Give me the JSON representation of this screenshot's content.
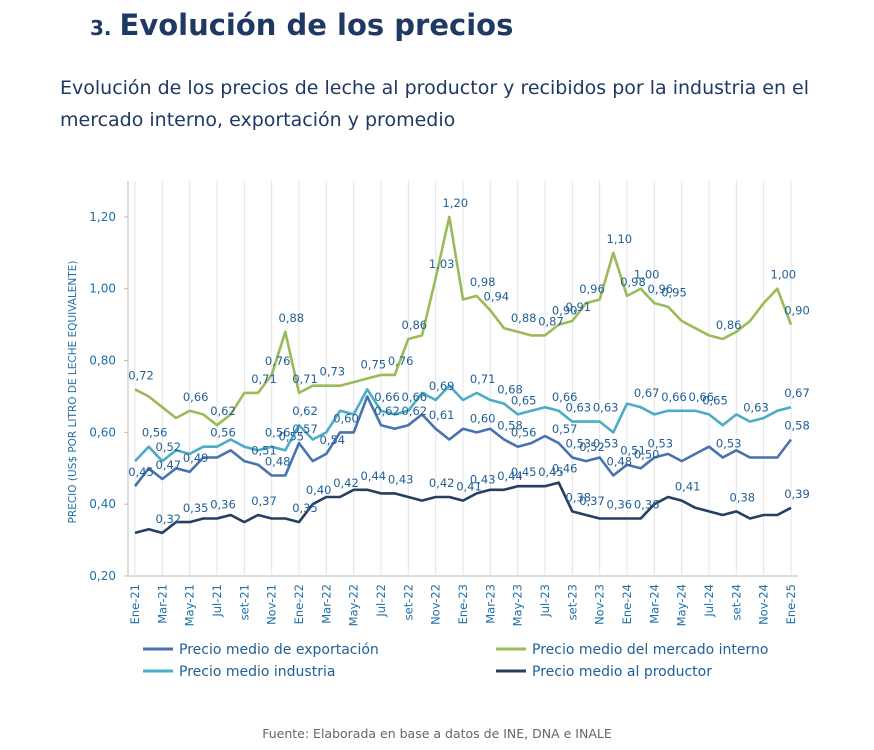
{
  "header": {
    "number": "3.",
    "title": "Evolución de los precios"
  },
  "chart_data": {
    "type": "line",
    "title": "Evolución de los precios de leche al productor y recibidos por la industria en el mercado interno, exportación y promedio",
    "y_label": "PRECIO (US$ POR LITRO DE LECHE EQUIVALENTE)",
    "source": "Fuente: Elaborada en base a datos de INE, DNA e INALE",
    "categories": [
      "Ene-21",
      null,
      "Mar-21",
      null,
      "May-21",
      null,
      "Jul-21",
      null,
      "set-21",
      null,
      "Nov-21",
      null,
      "Ene-22",
      null,
      "Mar-22",
      null,
      "May-22",
      null,
      "Jul-22",
      null,
      "set-22",
      null,
      "Nov-22",
      null,
      "Ene-23",
      null,
      "Mar-23",
      null,
      "May-23",
      null,
      "Jul-23",
      null,
      "set-23",
      null,
      "Nov-23",
      null,
      "Ene-24",
      null,
      "Mar-24",
      null,
      "May-24",
      null,
      "Jul-24",
      null,
      "set-24",
      null,
      "Nov-24",
      null,
      "Ene-25"
    ],
    "ylim": [
      0.2,
      1.3
    ],
    "yticks": [
      {
        "value": 0.2,
        "label": "0,20"
      },
      {
        "value": 0.4,
        "label": "0,40"
      },
      {
        "value": 0.6,
        "label": "0,60"
      },
      {
        "value": 0.8,
        "label": "0,80"
      },
      {
        "value": 1.0,
        "label": "1,00"
      },
      {
        "value": 1.2,
        "label": "1,20"
      }
    ],
    "x_grid": true,
    "series": [
      {
        "name": "Precio medio de exportación",
        "color": "#4a72b0",
        "values": [
          0.45,
          0.5,
          0.47,
          0.5,
          0.49,
          0.53,
          0.53,
          0.55,
          0.52,
          0.51,
          0.48,
          0.48,
          0.57,
          0.52,
          0.54,
          0.6,
          0.6,
          0.7,
          0.62,
          0.61,
          0.62,
          0.65,
          0.61,
          0.58,
          0.61,
          0.6,
          0.61,
          0.58,
          0.56,
          0.57,
          0.59,
          0.57,
          0.53,
          0.52,
          0.53,
          0.48,
          0.51,
          0.5,
          0.53,
          0.54,
          0.52,
          0.54,
          0.56,
          0.53,
          0.55,
          0.53,
          0.53,
          0.53,
          0.58
        ],
        "value_labels": [
          "0,45",
          null,
          "0,47",
          null,
          "0,49",
          null,
          null,
          null,
          null,
          "0,51",
          "0,48",
          null,
          "0,57",
          null,
          "0,54",
          "0,60",
          null,
          null,
          "0,62",
          null,
          "0,62",
          null,
          "0,61",
          null,
          null,
          "0,60",
          null,
          "0,58",
          "0,56",
          null,
          null,
          "0,57",
          "0,53",
          "0,52",
          "0,53",
          "0,48",
          "0,51",
          "0,50",
          "0,53",
          null,
          null,
          null,
          null,
          "0,53",
          null,
          null,
          null,
          null,
          "0,58"
        ]
      },
      {
        "name": "Precio medio del mercado interno",
        "color": "#9bbb59",
        "values": [
          0.72,
          0.7,
          0.67,
          0.64,
          0.66,
          0.65,
          0.62,
          0.65,
          0.71,
          0.71,
          0.76,
          0.88,
          0.71,
          0.73,
          0.73,
          0.73,
          0.74,
          0.75,
          0.76,
          0.76,
          0.86,
          0.87,
          1.03,
          1.2,
          0.97,
          0.98,
          0.94,
          0.89,
          0.88,
          0.87,
          0.87,
          0.9,
          0.91,
          0.96,
          0.97,
          1.1,
          0.98,
          1.0,
          0.96,
          0.95,
          0.91,
          0.89,
          0.87,
          0.86,
          0.88,
          0.91,
          0.96,
          1.0,
          0.9
        ],
        "value_labels": [
          "0,72",
          null,
          null,
          null,
          "0,66",
          null,
          "0,62",
          null,
          null,
          "0,71",
          "0,76",
          "0,88",
          "0,71",
          null,
          "0,73",
          null,
          null,
          "0,75",
          null,
          "0,76",
          "0,86",
          null,
          "1,03",
          "1,20",
          null,
          "0,98",
          "0,94",
          null,
          "0,88",
          null,
          "0,87",
          "0,90",
          "0,91",
          "0,96",
          null,
          "1,10",
          "0,98",
          "1,00",
          "0,96",
          "0,95",
          null,
          null,
          null,
          "0,86",
          null,
          null,
          null,
          "1,00",
          "0,90"
        ]
      },
      {
        "name": "Precio medio industria",
        "color": "#4bacc6",
        "values": [
          0.52,
          0.56,
          0.52,
          0.55,
          0.54,
          0.56,
          0.56,
          0.58,
          0.56,
          0.55,
          0.56,
          0.55,
          0.62,
          0.58,
          0.6,
          0.66,
          0.65,
          0.72,
          0.66,
          0.65,
          0.66,
          0.71,
          0.69,
          0.73,
          0.69,
          0.71,
          0.69,
          0.68,
          0.65,
          0.66,
          0.67,
          0.66,
          0.63,
          0.63,
          0.63,
          0.6,
          0.68,
          0.67,
          0.65,
          0.66,
          0.66,
          0.66,
          0.65,
          0.62,
          0.65,
          0.63,
          0.64,
          0.66,
          0.67
        ],
        "value_labels": [
          null,
          "0,56",
          "0,52",
          null,
          null,
          null,
          "0,56",
          null,
          null,
          null,
          "0,56",
          "0,55",
          "0,62",
          null,
          null,
          null,
          null,
          null,
          "0,66",
          null,
          "0,66",
          null,
          "0,69",
          null,
          null,
          "0,71",
          null,
          "0,68",
          "0,65",
          null,
          null,
          "0,66",
          "0,63",
          null,
          "0,63",
          null,
          null,
          "0,67",
          null,
          "0,66",
          null,
          "0,66",
          "0,65",
          null,
          null,
          "0,63",
          null,
          null,
          "0,67"
        ]
      },
      {
        "name": "Precio medio al productor",
        "color": "#243f60",
        "values": [
          0.32,
          0.33,
          0.32,
          0.35,
          0.35,
          0.36,
          0.36,
          0.37,
          0.35,
          0.37,
          0.36,
          0.36,
          0.35,
          0.4,
          0.42,
          0.42,
          0.44,
          0.44,
          0.43,
          0.43,
          0.42,
          0.41,
          0.42,
          0.42,
          0.41,
          0.43,
          0.44,
          0.44,
          0.45,
          0.45,
          0.45,
          0.46,
          0.38,
          0.37,
          0.36,
          0.36,
          0.36,
          0.36,
          0.4,
          0.42,
          0.41,
          0.39,
          0.38,
          0.37,
          0.38,
          0.36,
          0.37,
          0.37,
          0.39
        ],
        "value_labels": [
          null,
          null,
          "0,32",
          null,
          "0,35",
          null,
          "0,36",
          null,
          null,
          "0,37",
          null,
          null,
          "0,35",
          "0,40",
          null,
          "0,42",
          null,
          "0,44",
          null,
          "0,43",
          null,
          null,
          "0,42",
          null,
          "0,41",
          "0,43",
          null,
          "0,44",
          "0,45",
          null,
          "0,45",
          "0,46",
          "0,38",
          "0,37",
          null,
          "0,36",
          null,
          "0,36",
          null,
          null,
          "0,41",
          null,
          null,
          null,
          "0,38",
          null,
          null,
          null,
          "0,39"
        ]
      }
    ]
  }
}
